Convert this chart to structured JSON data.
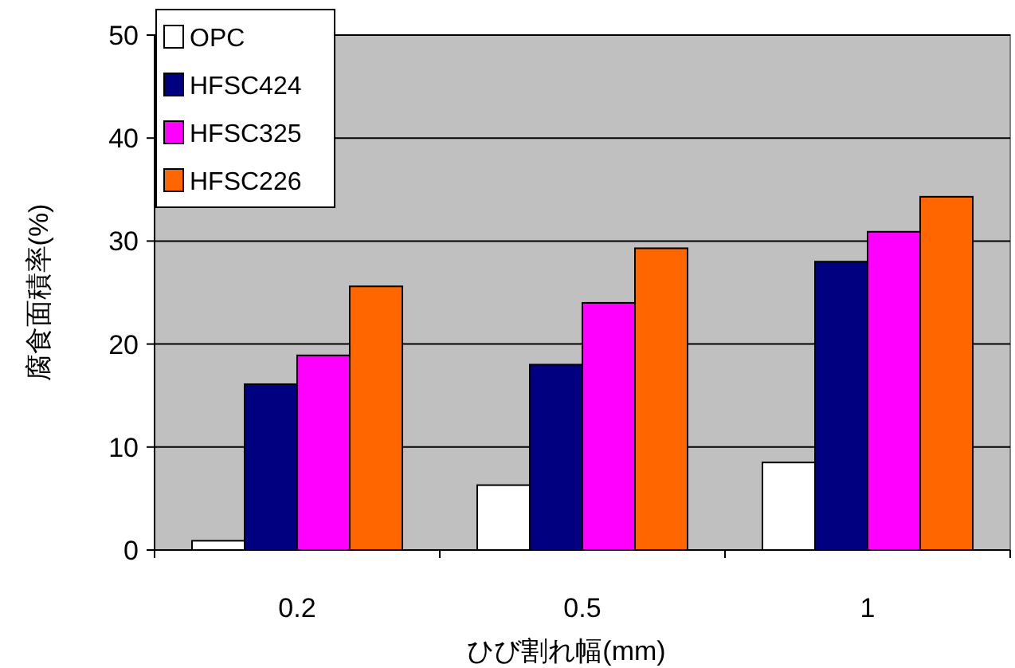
{
  "chart_data": {
    "type": "bar",
    "xlabel": "ひび割れ幅(mm)",
    "ylabel": "腐食面積率(%)",
    "categories": [
      "0.2",
      "0.5",
      "1"
    ],
    "series": [
      {
        "name": "OPC",
        "color": "#ffffff",
        "values": [
          0.9,
          6.3,
          8.5
        ]
      },
      {
        "name": "HFSC424",
        "color": "#000080",
        "values": [
          16.1,
          18,
          28
        ]
      },
      {
        "name": "HFSC325",
        "color": "#ff00ff",
        "values": [
          18.9,
          24,
          30.9
        ]
      },
      {
        "name": "HFSC226",
        "color": "#ff6600",
        "values": [
          25.6,
          29.3,
          34.3
        ]
      }
    ],
    "ylim": [
      0,
      50
    ],
    "yticks": [
      0,
      10,
      20,
      30,
      40,
      50
    ],
    "grid": "y",
    "legend": "top left"
  }
}
